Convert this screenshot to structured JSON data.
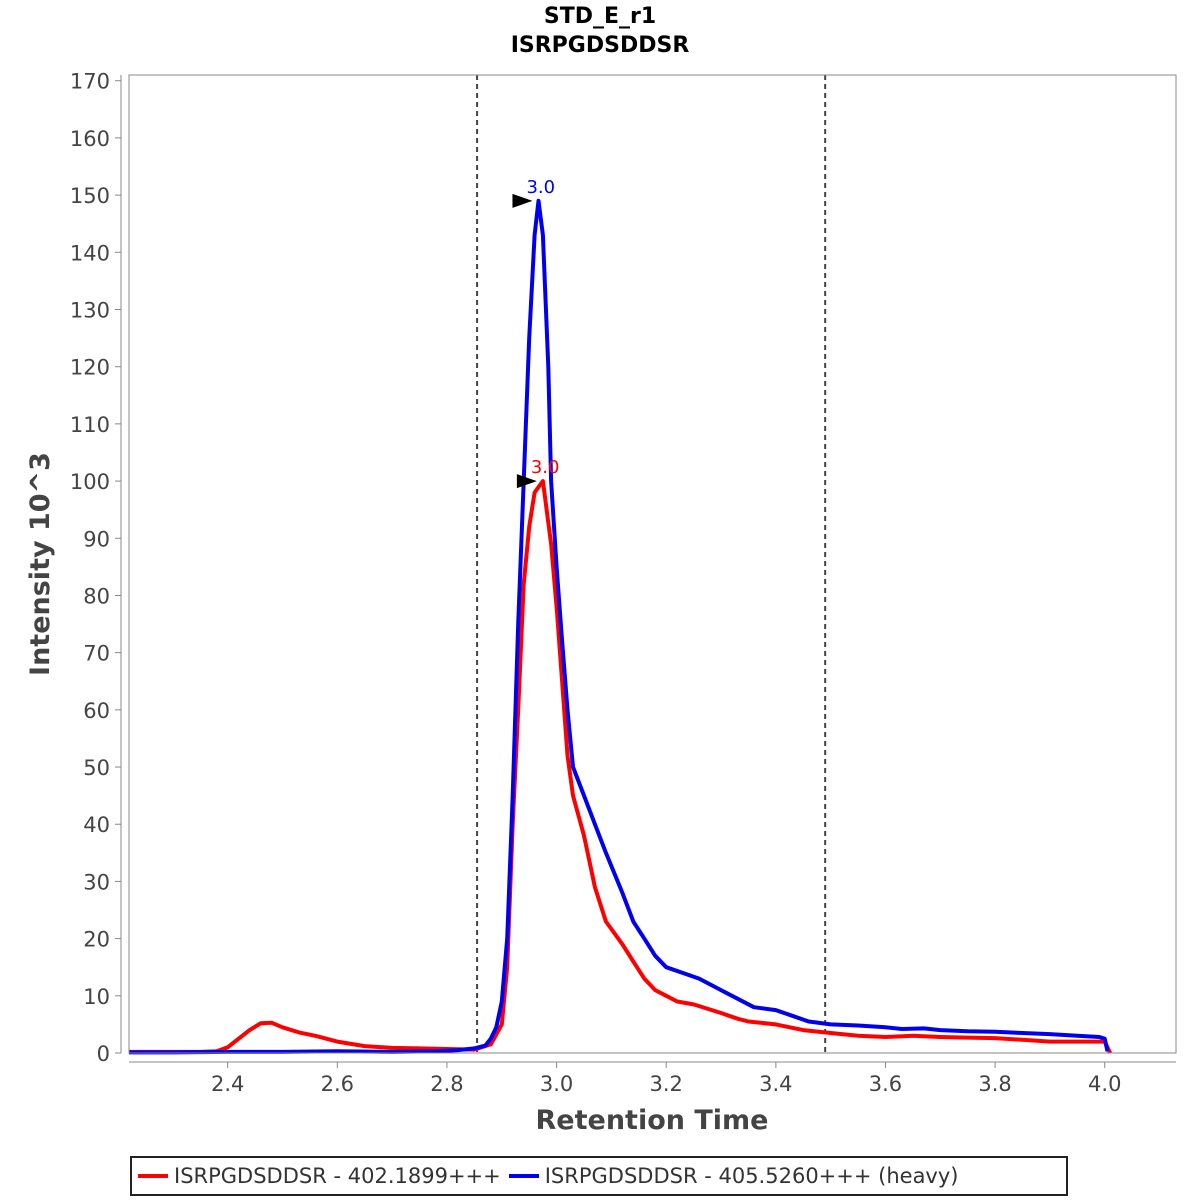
{
  "chart_data": {
    "type": "line",
    "title": "STD_E_r1",
    "subtitle": "ISRPGDSDDSR",
    "xlabel": "Retention Time",
    "ylabel": "Intensity 10^3",
    "xlim": [
      2.22,
      4.13
    ],
    "ylim": [
      0,
      171
    ],
    "x_ticks": [
      "2.4",
      "2.6",
      "2.8",
      "3.0",
      "3.2",
      "3.4",
      "3.6",
      "3.8",
      "4.0"
    ],
    "y_ticks": [
      "0",
      "10",
      "20",
      "30",
      "40",
      "50",
      "60",
      "70",
      "80",
      "90",
      "100",
      "110",
      "120",
      "130",
      "140",
      "150",
      "160",
      "170"
    ],
    "integration_bounds": [
      2.855,
      3.49
    ],
    "series": [
      {
        "name": "ISRPGDSDDSR - 402.1899+++",
        "color": "#ff0000",
        "peak": {
          "x": 2.975,
          "y": 100,
          "label": "3.0"
        },
        "x": [
          2.22,
          2.3,
          2.35,
          2.38,
          2.4,
          2.42,
          2.44,
          2.46,
          2.48,
          2.5,
          2.53,
          2.56,
          2.6,
          2.65,
          2.7,
          2.75,
          2.8,
          2.85,
          2.88,
          2.9,
          2.91,
          2.92,
          2.93,
          2.94,
          2.95,
          2.96,
          2.975,
          2.99,
          3.0,
          3.01,
          3.02,
          3.03,
          3.05,
          3.07,
          3.09,
          3.12,
          3.14,
          3.16,
          3.18,
          3.2,
          3.22,
          3.25,
          3.3,
          3.33,
          3.35,
          3.4,
          3.45,
          3.5,
          3.55,
          3.6,
          3.65,
          3.7,
          3.75,
          3.8,
          3.85,
          3.9,
          3.95,
          4.0,
          4.01
        ],
        "y": [
          0.2,
          0.2,
          0.2,
          0.3,
          1.0,
          2.5,
          4.0,
          5.2,
          5.3,
          4.5,
          3.6,
          3.0,
          2.0,
          1.2,
          0.9,
          0.8,
          0.7,
          0.6,
          1.5,
          5,
          15,
          40,
          60,
          82,
          92,
          98,
          100,
          89,
          78,
          65,
          52,
          45,
          38,
          29,
          23,
          19,
          16,
          13,
          11,
          10,
          9,
          8.5,
          7,
          6,
          5.5,
          5,
          4,
          3.5,
          3,
          2.8,
          3,
          2.8,
          2.7,
          2.6,
          2.3,
          2.0,
          2.0,
          2.0,
          0.0
        ]
      },
      {
        "name": "ISRPGDSDDSR - 405.5260+++ (heavy)",
        "color": "#0000ee",
        "peak": {
          "x": 2.967,
          "y": 149,
          "label": "3.0"
        },
        "x": [
          2.22,
          2.3,
          2.4,
          2.5,
          2.6,
          2.7,
          2.78,
          2.82,
          2.85,
          2.87,
          2.88,
          2.89,
          2.9,
          2.91,
          2.92,
          2.93,
          2.94,
          2.95,
          2.96,
          2.967,
          2.975,
          2.985,
          2.99,
          3.0,
          3.01,
          3.02,
          3.03,
          3.05,
          3.07,
          3.09,
          3.12,
          3.14,
          3.16,
          3.18,
          3.2,
          3.23,
          3.26,
          3.3,
          3.33,
          3.36,
          3.4,
          3.43,
          3.46,
          3.5,
          3.55,
          3.6,
          3.63,
          3.67,
          3.7,
          3.75,
          3.8,
          3.85,
          3.9,
          3.95,
          3.99,
          4.0,
          4.005
        ],
        "y": [
          0.1,
          0.1,
          0.2,
          0.2,
          0.3,
          0.2,
          0.3,
          0.5,
          0.8,
          1.3,
          2.5,
          4.5,
          9,
          20,
          45,
          75,
          100,
          125,
          143,
          149,
          143,
          120,
          100,
          85,
          72,
          60,
          50,
          45,
          40,
          35,
          28,
          23,
          20,
          17,
          15,
          14,
          13,
          11,
          9.5,
          8,
          7.5,
          6.5,
          5.5,
          5,
          4.8,
          4.5,
          4.2,
          4.3,
          4.0,
          3.8,
          3.7,
          3.5,
          3.3,
          3.0,
          2.8,
          2.5,
          0.3
        ]
      }
    ],
    "legend_position": "bottom"
  }
}
